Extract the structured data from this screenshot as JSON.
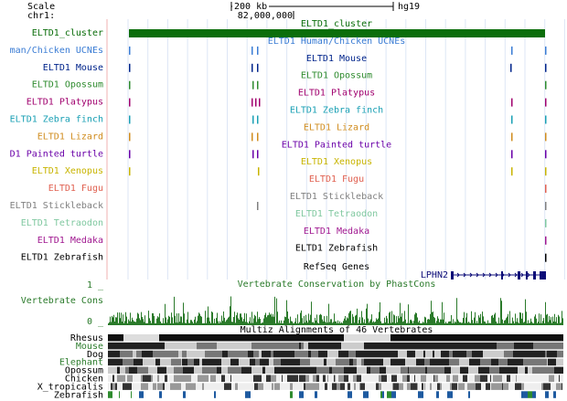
{
  "ruler": {
    "scale": "Scale",
    "chrom": "chr1:",
    "scalebar": "200 kb",
    "assembly": "hg19",
    "position": "82,000,000"
  },
  "tracks": [
    {
      "label": "ELTD1_cluster",
      "title": "ELTD1_cluster",
      "color": "#0b6e0b"
    },
    {
      "label": "man/Chicken UCNEs",
      "title": "ELTD1 Human/Chicken UCNEs",
      "color": "#3a7cd4"
    },
    {
      "label": "ELTD1 Mouse",
      "title": "ELTD1 Mouse",
      "color": "#00248b"
    },
    {
      "label": "ELTD1 Opossum",
      "title": "ELTD1 Opossum",
      "color": "#2e8b2e"
    },
    {
      "label": "ELTD1 Platypus",
      "title": "ELTD1 Platypus",
      "color": "#a0006e"
    },
    {
      "label": "ELTD1 Zebra finch",
      "title": "ELTD1 Zebra finch",
      "color": "#1aa0b4"
    },
    {
      "label": "ELTD1 Lizard",
      "title": "ELTD1 Lizard",
      "color": "#d08c1e"
    },
    {
      "label": "D1 Painted turtle",
      "title": "ELTD1 Painted turtle",
      "color": "#6a00a8"
    },
    {
      "label": "ELTD1 Xenopus",
      "title": "ELTD1 Xenopus",
      "color": "#c8b400"
    },
    {
      "label": "ELTD1 Fugu",
      "title": "ELTD1 Fugu",
      "color": "#e06050"
    },
    {
      "label": "ELTD1 Stickleback",
      "title": "ELTD1 Stickleback",
      "color": "#808080"
    },
    {
      "label": "ELTD1 Tetraodon",
      "title": "ELTD1 Tetraodon",
      "color": "#80c8a0"
    },
    {
      "label": "ELTD1 Medaka",
      "title": "ELTD1 Medaka",
      "color": "#a01890"
    },
    {
      "label": "ELTD1 Zebrafish",
      "title": "ELTD1 Zebrafish",
      "color": "#000000"
    }
  ],
  "refseq": {
    "title": "RefSeq Genes",
    "gene": "LPHN2"
  },
  "cons": {
    "title": "Vertebrate Conservation by PhastCons",
    "label": "Vertebrate Cons",
    "max": "1 _",
    "min": "0 _"
  },
  "multiz": {
    "title": "Multiz Alignments of 46 Vertebrates",
    "species": [
      "Rhesus",
      "Mouse",
      "Dog",
      "Elephant",
      "Opossum",
      "Chicken",
      "X_tropicalis",
      "Zebrafish"
    ]
  }
}
